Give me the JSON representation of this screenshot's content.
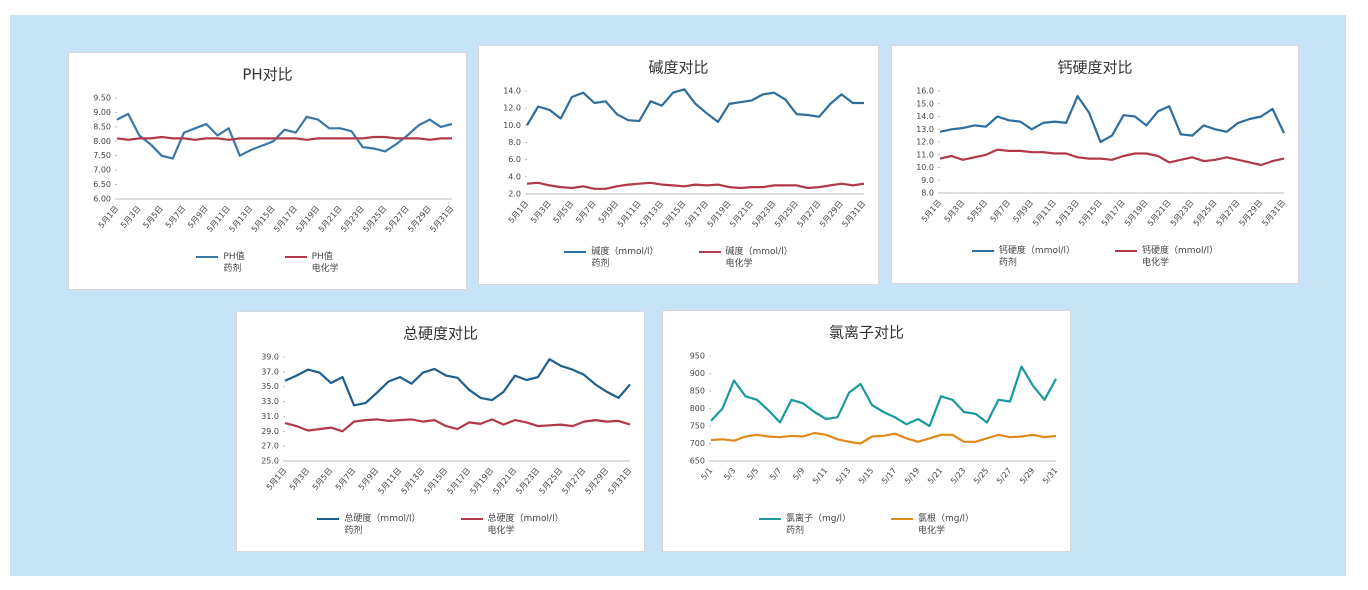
{
  "chart_data": [
    {
      "type": "line",
      "title": "PH对比",
      "categories": [
        "5月1日",
        null,
        "5月3日",
        null,
        "5月5日",
        null,
        "5月7日",
        null,
        "5月9日",
        null,
        "5月11日",
        null,
        "5月13日",
        null,
        "5月15日",
        null,
        "5月17日",
        null,
        "5月19日",
        null,
        "5月21日",
        null,
        "5月23日",
        null,
        "5月25日",
        null,
        "5月27日",
        null,
        "5月29日",
        null,
        "5月31日"
      ],
      "ylim": [
        6,
        9.5
      ],
      "yticks": [
        {
          "value": 6,
          "label": "6.00"
        },
        {
          "value": 6.5,
          "label": "6.50"
        },
        {
          "value": 7,
          "label": "7.00"
        },
        {
          "value": 7.5,
          "label": "7.50"
        },
        {
          "value": 8,
          "label": "8.00"
        },
        {
          "value": 8.5,
          "label": "8.50"
        },
        {
          "value": 9,
          "label": "9.00"
        },
        {
          "value": 9.5,
          "label": "9.50"
        }
      ],
      "series": [
        {
          "name": "PH值\n药剂",
          "color": "#3a78a8",
          "values": [
            8.75,
            8.95,
            8.2,
            7.9,
            7.5,
            7.4,
            8.3,
            8.45,
            8.6,
            8.2,
            8.45,
            7.5,
            7.7,
            7.85,
            8.0,
            8.4,
            8.3,
            8.85,
            8.75,
            8.45,
            8.45,
            8.35,
            7.8,
            7.75,
            7.65,
            7.9,
            8.2,
            8.55,
            8.75,
            8.5,
            8.6
          ]
        },
        {
          "name": "PH值\n电化学",
          "color": "#b0394a",
          "values": [
            8.1,
            8.05,
            8.1,
            8.1,
            8.15,
            8.1,
            8.1,
            8.05,
            8.1,
            8.1,
            8.05,
            8.1,
            8.1,
            8.1,
            8.1,
            8.1,
            8.1,
            8.05,
            8.1,
            8.1,
            8.1,
            8.1,
            8.1,
            8.15,
            8.15,
            8.1,
            8.1,
            8.1,
            8.05,
            8.1,
            8.1
          ]
        }
      ]
    },
    {
      "type": "line",
      "title": "碱度对比",
      "categories": [
        "5月1日",
        null,
        "5月3日",
        null,
        "5月5日",
        null,
        "5月7日",
        null,
        "5月9日",
        null,
        "5月11日",
        null,
        "5月13日",
        null,
        "5月15日",
        null,
        "5月17日",
        null,
        "5月19日",
        null,
        "5月21日",
        null,
        "5月23日",
        null,
        "5月25日",
        null,
        "5月27日",
        null,
        "5月29日",
        null,
        "5月31日"
      ],
      "ylim": [
        2,
        14
      ],
      "yticks": [
        {
          "value": 2,
          "label": "2.0"
        },
        {
          "value": 4,
          "label": "4.0"
        },
        {
          "value": 6,
          "label": "6.0"
        },
        {
          "value": 8,
          "label": "8.0"
        },
        {
          "value": 10,
          "label": "10.0"
        },
        {
          "value": 12,
          "label": "12.0"
        },
        {
          "value": 14,
          "label": "14.0"
        }
      ],
      "series": [
        {
          "name": "碱度（mmol/l）\n药剂",
          "color": "#2e6e9e",
          "values": [
            10.0,
            12.2,
            11.8,
            10.8,
            13.3,
            13.8,
            12.6,
            12.8,
            11.3,
            10.6,
            10.5,
            12.8,
            12.3,
            13.8,
            14.2,
            12.5,
            11.4,
            10.4,
            12.5,
            12.7,
            12.9,
            13.6,
            13.8,
            13.0,
            11.3,
            11.2,
            11.0,
            12.5,
            13.6,
            12.6,
            12.6
          ]
        },
        {
          "name": "碱度（mmol/l）\n电化学",
          "color": "#b0394a",
          "values": [
            3.2,
            3.3,
            3.0,
            2.8,
            2.7,
            2.9,
            2.6,
            2.6,
            2.9,
            3.1,
            3.2,
            3.3,
            3.1,
            3.0,
            2.9,
            3.1,
            3.0,
            3.1,
            2.8,
            2.7,
            2.8,
            2.8,
            3.0,
            3.0,
            3.0,
            2.7,
            2.8,
            3.0,
            3.2,
            3.0,
            3.2
          ]
        }
      ]
    },
    {
      "type": "line",
      "title": "钙硬度对比",
      "categories": [
        "5月1日",
        null,
        "5月3日",
        null,
        "5月5日",
        null,
        "5月7日",
        null,
        "5月9日",
        null,
        "5月11日",
        null,
        "5月13日",
        null,
        "5月15日",
        null,
        "5月17日",
        null,
        "5月19日",
        null,
        "5月21日",
        null,
        "5月23日",
        null,
        "5月25日",
        null,
        "5月27日",
        null,
        "5月29日",
        null,
        "5月31日"
      ],
      "ylim": [
        8,
        16
      ],
      "yticks": [
        {
          "value": 8,
          "label": "8.0"
        },
        {
          "value": 9,
          "label": "9.0"
        },
        {
          "value": 10,
          "label": "10.0"
        },
        {
          "value": 11,
          "label": "11.0"
        },
        {
          "value": 12,
          "label": "12.0"
        },
        {
          "value": 13,
          "label": "13.0"
        },
        {
          "value": 14,
          "label": "14.0"
        },
        {
          "value": 15,
          "label": "15.0"
        },
        {
          "value": 16,
          "label": "16.0"
        }
      ],
      "series": [
        {
          "name": "钙硬度（mmol/l）\n药剂",
          "color": "#2e6e9e",
          "values": [
            12.8,
            13.0,
            13.1,
            13.3,
            13.2,
            14.0,
            13.7,
            13.6,
            13.0,
            13.5,
            13.6,
            13.5,
            15.6,
            14.3,
            12.0,
            12.5,
            14.1,
            14.0,
            13.3,
            14.4,
            14.8,
            12.6,
            12.5,
            13.3,
            13.0,
            12.8,
            13.5,
            13.8,
            14.0,
            14.6,
            12.7
          ]
        },
        {
          "name": "钙硬度（mmol/l）\n电化学",
          "color": "#b0394a",
          "values": [
            10.7,
            10.9,
            10.6,
            10.8,
            11.0,
            11.4,
            11.3,
            11.3,
            11.2,
            11.2,
            11.1,
            11.1,
            10.8,
            10.7,
            10.7,
            10.6,
            10.9,
            11.1,
            11.1,
            10.9,
            10.4,
            10.6,
            10.8,
            10.5,
            10.6,
            10.8,
            10.6,
            10.4,
            10.2,
            10.5,
            10.7
          ]
        }
      ]
    },
    {
      "type": "line",
      "title": "总硬度对比",
      "categories": [
        "5月1日",
        null,
        "5月3日",
        null,
        "5月5日",
        null,
        "5月7日",
        null,
        "5月9日",
        null,
        "5月11日",
        null,
        "5月13日",
        null,
        "5月15日",
        null,
        "5月17日",
        null,
        "5月19日",
        null,
        "5月21日",
        null,
        "5月23日",
        null,
        "5月25日",
        null,
        "5月27日",
        null,
        "5月29日",
        null,
        "5月31日"
      ],
      "ylim": [
        25,
        39
      ],
      "yticks": [
        {
          "value": 25,
          "label": "25.0"
        },
        {
          "value": 27,
          "label": "27.0"
        },
        {
          "value": 29,
          "label": "29.0"
        },
        {
          "value": 31,
          "label": "31.0"
        },
        {
          "value": 33,
          "label": "33.0"
        },
        {
          "value": 35,
          "label": "35.0"
        },
        {
          "value": 37,
          "label": "37.0"
        },
        {
          "value": 39,
          "label": "39.0"
        }
      ],
      "series": [
        {
          "name": "总硬度（mmol/l）\n药剂",
          "color": "#1f5f8e",
          "values": [
            35.8,
            36.5,
            37.3,
            36.9,
            35.5,
            36.3,
            32.5,
            32.8,
            34.2,
            35.7,
            36.3,
            35.4,
            36.9,
            37.4,
            36.5,
            36.2,
            34.6,
            33.5,
            33.2,
            34.3,
            36.5,
            35.9,
            36.3,
            38.7,
            37.8,
            37.3,
            36.6,
            35.3,
            34.3,
            33.5,
            35.3
          ]
        },
        {
          "name": "总硬度（mmol/l）\n电化学",
          "color": "#b0394a",
          "values": [
            30.1,
            29.7,
            29.1,
            29.3,
            29.5,
            29.0,
            30.3,
            30.5,
            30.6,
            30.4,
            30.5,
            30.6,
            30.3,
            30.5,
            29.7,
            29.3,
            30.2,
            30.0,
            30.6,
            29.9,
            30.5,
            30.2,
            29.7,
            29.8,
            29.9,
            29.7,
            30.3,
            30.5,
            30.3,
            30.4,
            29.9
          ]
        }
      ]
    },
    {
      "type": "line",
      "title": "氯离子对比",
      "categories": [
        "5/1",
        null,
        "5/3",
        null,
        "5/5",
        null,
        "5/7",
        null,
        "5/9",
        null,
        "5/11",
        null,
        "5/13",
        null,
        "5/15",
        null,
        "5/17",
        null,
        "5/19",
        null,
        "5/21",
        null,
        "5/23",
        null,
        "5/25",
        null,
        "5/27",
        null,
        "5/29",
        null,
        "5/31"
      ],
      "ylim": [
        650,
        950
      ],
      "yticks": [
        650,
        700,
        750,
        800,
        850,
        900,
        950
      ],
      "series": [
        {
          "name": "氯离子（mg/l）\n药剂",
          "color": "#1a9a9c",
          "values": [
            765,
            800,
            880,
            835,
            825,
            795,
            760,
            825,
            815,
            790,
            770,
            775,
            845,
            870,
            810,
            790,
            775,
            755,
            770,
            750,
            835,
            825,
            790,
            785,
            760,
            825,
            820,
            920,
            865,
            825,
            885
          ]
        },
        {
          "name": "氯根（mg/l）\n电化学",
          "color": "#e08a1e",
          "values": [
            710,
            712,
            708,
            720,
            725,
            720,
            718,
            722,
            720,
            730,
            725,
            712,
            705,
            700,
            720,
            722,
            728,
            715,
            705,
            715,
            725,
            725,
            705,
            705,
            715,
            725,
            718,
            720,
            725,
            718,
            722
          ]
        }
      ]
    }
  ]
}
